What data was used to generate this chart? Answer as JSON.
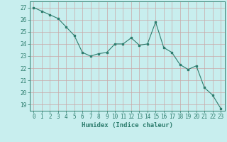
{
  "x": [
    0,
    1,
    2,
    3,
    4,
    5,
    6,
    7,
    8,
    9,
    10,
    11,
    12,
    13,
    14,
    15,
    16,
    17,
    18,
    19,
    20,
    21,
    22,
    23
  ],
  "y": [
    27.0,
    26.7,
    26.4,
    26.1,
    25.4,
    24.7,
    23.3,
    23.0,
    23.2,
    23.3,
    24.0,
    24.0,
    24.5,
    23.9,
    24.0,
    25.8,
    23.7,
    23.3,
    22.3,
    21.9,
    22.2,
    20.4,
    19.8,
    18.7
  ],
  "line_color": "#2d7d6e",
  "marker_color": "#2d7d6e",
  "bg_color": "#c8eeee",
  "grid_color": "#c8a8a8",
  "xlabel": "Humidex (Indice chaleur)",
  "xlim": [
    -0.5,
    23.5
  ],
  "ylim": [
    18.5,
    27.5
  ],
  "yticks": [
    19,
    20,
    21,
    22,
    23,
    24,
    25,
    26,
    27
  ],
  "xticks": [
    0,
    1,
    2,
    3,
    4,
    5,
    6,
    7,
    8,
    9,
    10,
    11,
    12,
    13,
    14,
    15,
    16,
    17,
    18,
    19,
    20,
    21,
    22,
    23
  ],
  "tick_fontsize": 5.5,
  "xlabel_fontsize": 6.5
}
